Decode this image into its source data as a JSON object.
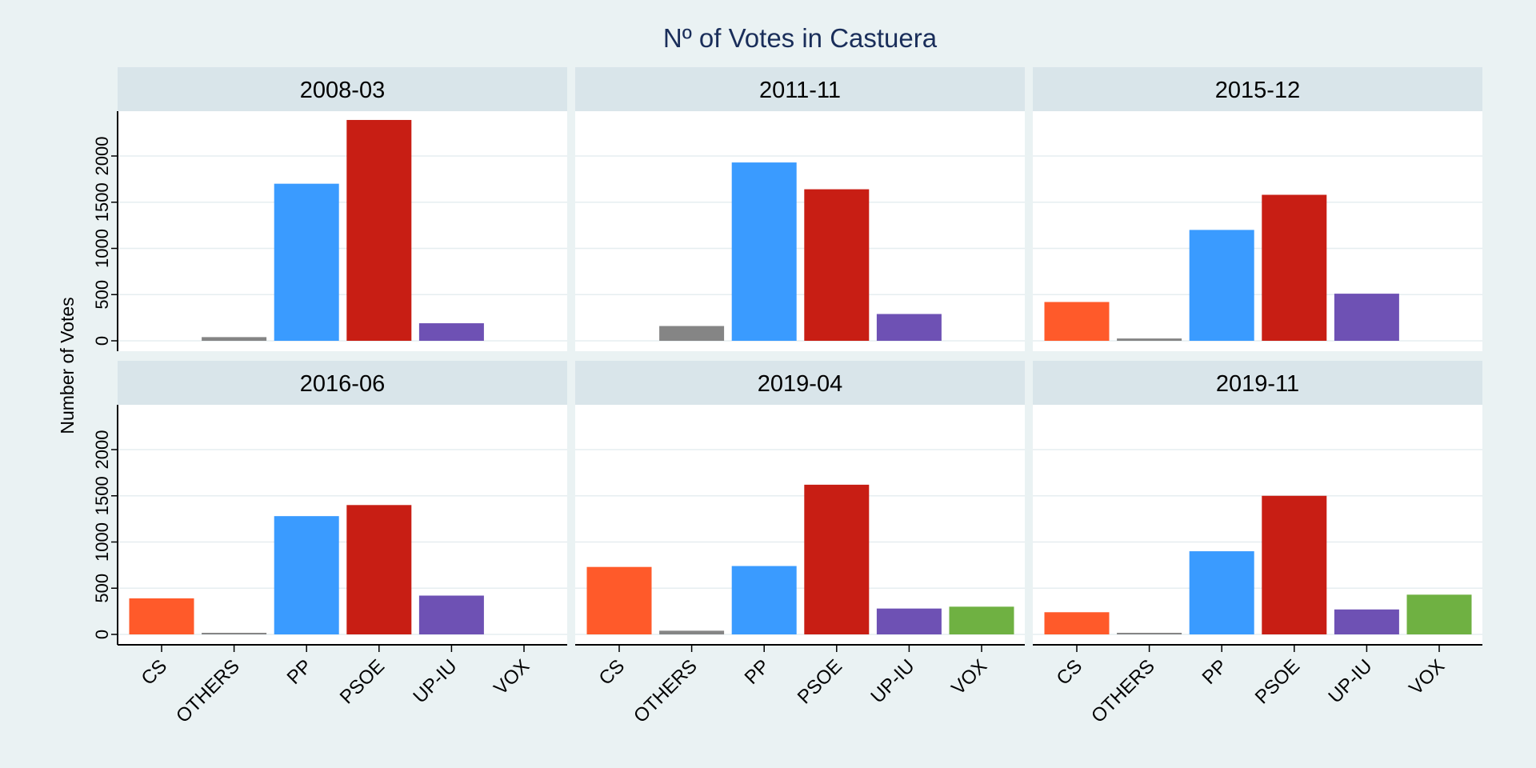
{
  "chart_data": {
    "type": "bar",
    "title": "Nº of Votes in Castuera",
    "ylabel": "Number of Votes",
    "xlabel": "",
    "ylim": [
      0,
      2500
    ],
    "yticks": [
      "0",
      "500",
      "1000",
      "1500",
      "2000"
    ],
    "categories": [
      "CS",
      "OTHERS",
      "PP",
      "PSOE",
      "UP-IU",
      "VOX"
    ],
    "colors": {
      "CS": "#ff5a2a",
      "OTHERS": "#858585",
      "PP": "#3a9bff",
      "PSOE": "#c81e14",
      "UP-IU": "#6e51b4",
      "VOX": "#6fb142"
    },
    "panels": [
      {
        "title": "2008-03",
        "values": {
          "CS": 0,
          "OTHERS": 40,
          "PP": 1700,
          "PSOE": 2390,
          "UP-IU": 190,
          "VOX": 0
        }
      },
      {
        "title": "2011-11",
        "values": {
          "CS": 0,
          "OTHERS": 160,
          "PP": 1930,
          "PSOE": 1640,
          "UP-IU": 290,
          "VOX": 0
        }
      },
      {
        "title": "2015-12",
        "values": {
          "CS": 420,
          "OTHERS": 25,
          "PP": 1200,
          "PSOE": 1580,
          "UP-IU": 510,
          "VOX": 0
        }
      },
      {
        "title": "2016-06",
        "values": {
          "CS": 390,
          "OTHERS": 15,
          "PP": 1280,
          "PSOE": 1400,
          "UP-IU": 420,
          "VOX": 0
        }
      },
      {
        "title": "2019-04",
        "values": {
          "CS": 730,
          "OTHERS": 40,
          "PP": 740,
          "PSOE": 1620,
          "UP-IU": 280,
          "VOX": 300
        }
      },
      {
        "title": "2019-11",
        "values": {
          "CS": 240,
          "OTHERS": 8,
          "PP": 900,
          "PSOE": 1500,
          "UP-IU": 270,
          "VOX": 430
        }
      }
    ],
    "grid": true,
    "legend": "none"
  }
}
